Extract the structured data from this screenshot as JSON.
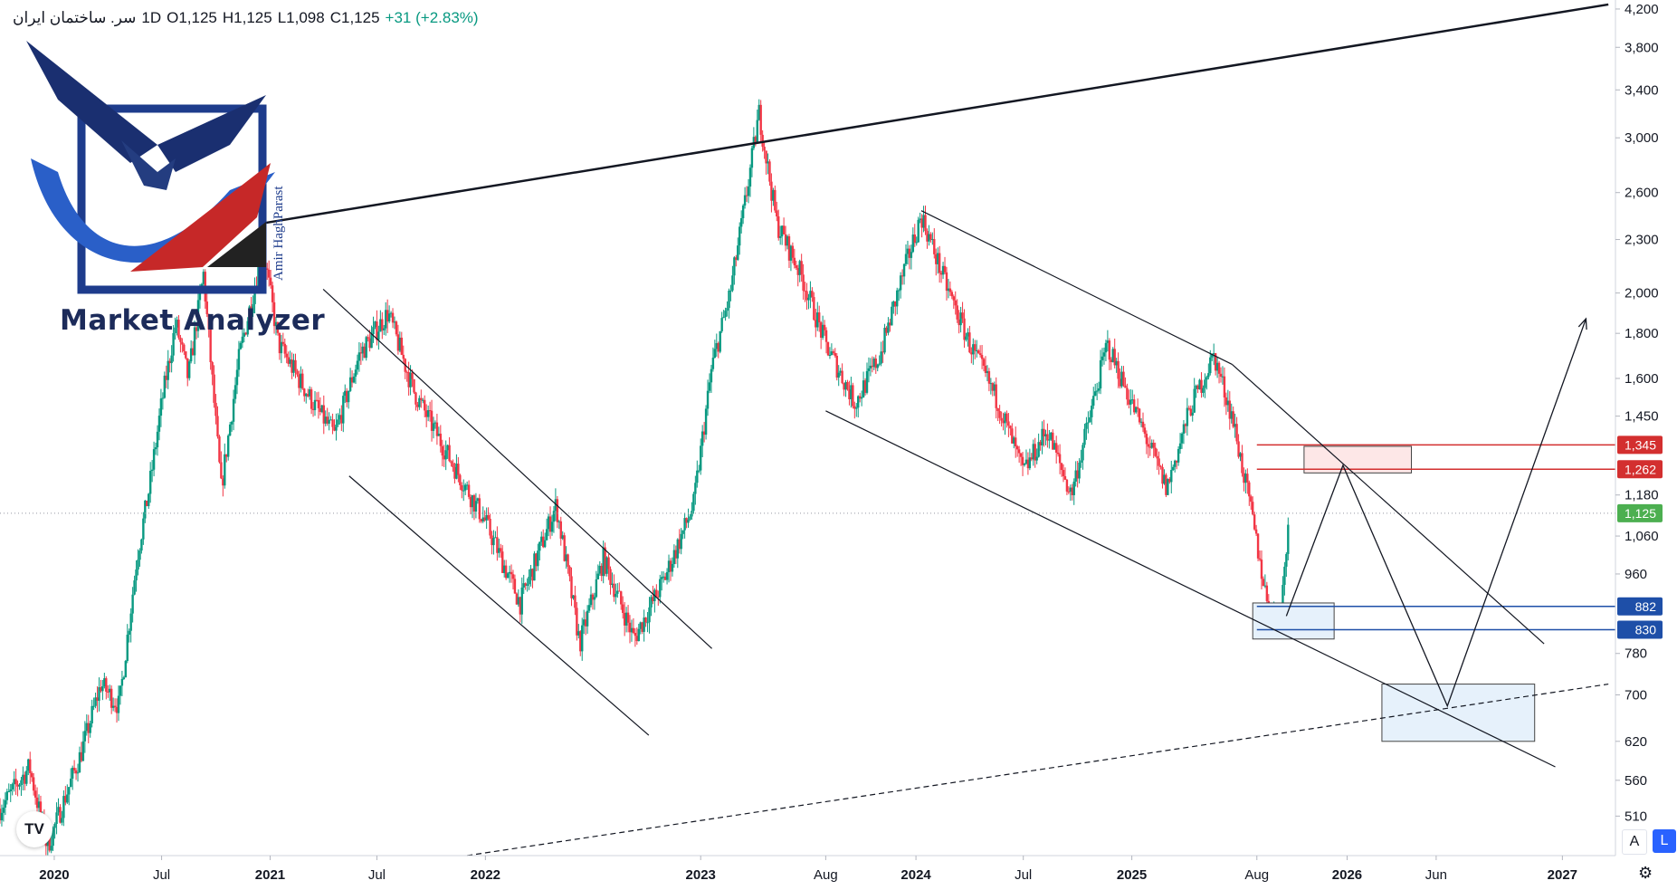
{
  "header": {
    "symbol": "سر. ساختمان ایران",
    "interval": "1D",
    "open": "O1,125",
    "high": "H1,125",
    "low": "L1,098",
    "close": "C1,125",
    "change": "+31 (+2.83%)"
  },
  "branding": {
    "title": "Market Analyzer",
    "author": "Amir HaghParast"
  },
  "toolbar": {
    "auto_label": "A",
    "log_label": "L",
    "tv_logo": "TV"
  },
  "icons": {
    "settings": "gear-icon"
  },
  "colors": {
    "up": "#089981",
    "down": "#f23645",
    "resistance": "#d32f2f",
    "support": "#1e4fa8",
    "last": "#4caf50"
  },
  "chart_data": {
    "type": "candlestick",
    "scale": "log",
    "ylim": [
      460,
      4300
    ],
    "y_ticks": [
      4200,
      3800,
      3400,
      3000,
      2600,
      2300,
      2000,
      1800,
      1600,
      1450,
      1180,
      1060,
      960,
      780,
      700,
      620,
      560,
      510
    ],
    "y_tick_labels": [
      "4,200",
      "3,800",
      "3,400",
      "3,000",
      "2,600",
      "2,300",
      "2,000",
      "1,800",
      "1,600",
      "1,450",
      "1,180",
      "1,060",
      "960",
      "780",
      "700",
      "620",
      "560",
      "510"
    ],
    "x_range": [
      "2019-10-01",
      "2027-04-01"
    ],
    "x_ticks": [
      {
        "date": "2020-01-01",
        "label": "2020",
        "bold": true
      },
      {
        "date": "2020-07-01",
        "label": "Jul",
        "bold": false
      },
      {
        "date": "2021-01-01",
        "label": "2021",
        "bold": true
      },
      {
        "date": "2021-07-01",
        "label": "Jul",
        "bold": false
      },
      {
        "date": "2022-01-01",
        "label": "2022",
        "bold": true
      },
      {
        "date": "2023-01-01",
        "label": "2023",
        "bold": true
      },
      {
        "date": "2023-08-01",
        "label": "Aug",
        "bold": false
      },
      {
        "date": "2024-01-01",
        "label": "2024",
        "bold": true
      },
      {
        "date": "2024-07-01",
        "label": "Jul",
        "bold": false
      },
      {
        "date": "2025-01-01",
        "label": "2025",
        "bold": true
      },
      {
        "date": "2025-08-01",
        "label": "Aug",
        "bold": false
      },
      {
        "date": "2026-01-01",
        "label": "2026",
        "bold": true
      },
      {
        "date": "2026-06-01",
        "label": "Jun",
        "bold": false
      },
      {
        "date": "2027-01-01",
        "label": "2027",
        "bold": true
      }
    ],
    "price_path": [
      {
        "t": "2019-10-01",
        "p": 520
      },
      {
        "t": "2019-11-20",
        "p": 580
      },
      {
        "t": "2019-12-20",
        "p": 470
      },
      {
        "t": "2020-02-15",
        "p": 600
      },
      {
        "t": "2020-03-20",
        "p": 720
      },
      {
        "t": "2020-04-20",
        "p": 680
      },
      {
        "t": "2020-05-20",
        "p": 1000
      },
      {
        "t": "2020-06-10",
        "p": 1200
      },
      {
        "t": "2020-07-01",
        "p": 1500
      },
      {
        "t": "2020-07-25",
        "p": 1850
      },
      {
        "t": "2020-08-15",
        "p": 1600
      },
      {
        "t": "2020-09-10",
        "p": 2100
      },
      {
        "t": "2020-10-10",
        "p": 1200
      },
      {
        "t": "2020-11-10",
        "p": 1700
      },
      {
        "t": "2020-12-20",
        "p": 2250
      },
      {
        "t": "2021-01-15",
        "p": 1750
      },
      {
        "t": "2021-03-15",
        "p": 1500
      },
      {
        "t": "2021-04-20",
        "p": 1380
      },
      {
        "t": "2021-06-01",
        "p": 1700
      },
      {
        "t": "2021-07-20",
        "p": 1900
      },
      {
        "t": "2021-09-01",
        "p": 1550
      },
      {
        "t": "2021-11-01",
        "p": 1300
      },
      {
        "t": "2022-01-01",
        "p": 1100
      },
      {
        "t": "2022-03-01",
        "p": 890
      },
      {
        "t": "2022-05-01",
        "p": 1150
      },
      {
        "t": "2022-06-10",
        "p": 800
      },
      {
        "t": "2022-07-20",
        "p": 1000
      },
      {
        "t": "2022-09-10",
        "p": 810
      },
      {
        "t": "2022-11-01",
        "p": 950
      },
      {
        "t": "2022-12-20",
        "p": 1150
      },
      {
        "t": "2023-01-20",
        "p": 1650
      },
      {
        "t": "2023-02-20",
        "p": 2000
      },
      {
        "t": "2023-03-20",
        "p": 2600
      },
      {
        "t": "2023-04-10",
        "p": 3200
      },
      {
        "t": "2023-05-10",
        "p": 2400
      },
      {
        "t": "2023-06-20",
        "p": 2100
      },
      {
        "t": "2023-08-01",
        "p": 1750
      },
      {
        "t": "2023-09-20",
        "p": 1500
      },
      {
        "t": "2023-11-01",
        "p": 1700
      },
      {
        "t": "2023-12-10",
        "p": 2100
      },
      {
        "t": "2024-01-10",
        "p": 2450
      },
      {
        "t": "2024-02-20",
        "p": 2050
      },
      {
        "t": "2024-04-01",
        "p": 1750
      },
      {
        "t": "2024-05-20",
        "p": 1500
      },
      {
        "t": "2024-07-01",
        "p": 1250
      },
      {
        "t": "2024-08-10",
        "p": 1400
      },
      {
        "t": "2024-09-20",
        "p": 1180
      },
      {
        "t": "2024-11-20",
        "p": 1750
      },
      {
        "t": "2025-01-10",
        "p": 1450
      },
      {
        "t": "2025-03-01",
        "p": 1200
      },
      {
        "t": "2025-04-10",
        "p": 1480
      },
      {
        "t": "2025-05-20",
        "p": 1700
      },
      {
        "t": "2025-06-20",
        "p": 1450
      },
      {
        "t": "2025-07-20",
        "p": 1150
      },
      {
        "t": "2025-08-20",
        "p": 880
      },
      {
        "t": "2025-09-10",
        "p": 860
      },
      {
        "t": "2025-09-25",
        "p": 1125
      }
    ],
    "last_price": {
      "value": 1125,
      "label": "1,125"
    },
    "levels": [
      {
        "name": "resistance-upper",
        "value": 1345,
        "label": "1,345",
        "color": "#d32f2f"
      },
      {
        "name": "resistance-lower",
        "value": 1262,
        "label": "1,262",
        "color": "#d32f2f"
      },
      {
        "name": "support-upper",
        "value": 882,
        "label": "882",
        "color": "#1e4fa8"
      },
      {
        "name": "support-lower",
        "value": 830,
        "label": "830",
        "color": "#1e4fa8"
      }
    ],
    "zones": [
      {
        "name": "sell-zone",
        "t1": "2025-10-20",
        "t2": "2026-04-20",
        "p1": 1340,
        "p2": 1250,
        "fill": "#fde7e7",
        "stroke": "#444"
      },
      {
        "name": "buy-zone-near",
        "t1": "2025-07-25",
        "t2": "2025-12-10",
        "p1": 890,
        "p2": 810,
        "fill": "#e6f1fb",
        "stroke": "#444"
      },
      {
        "name": "buy-zone-far",
        "t1": "2026-03-01",
        "t2": "2026-11-15",
        "p1": 720,
        "p2": 620,
        "fill": "#e6f1fb",
        "stroke": "#444"
      }
    ],
    "trendlines": [
      {
        "name": "long-term-resistance",
        "a": {
          "t": "2020-12-20",
          "p": 2400
        },
        "b": {
          "t": "2027-03-20",
          "p": 4250
        },
        "width": 2.5,
        "dash": false
      },
      {
        "name": "long-term-support",
        "a": {
          "t": "2021-12-01",
          "p": 460
        },
        "b": {
          "t": "2027-03-20",
          "p": 720
        },
        "width": 1.2,
        "dash": true
      },
      {
        "name": "channel-1-upper",
        "a": {
          "t": "2021-04-01",
          "p": 2020
        },
        "b": {
          "t": "2023-01-20",
          "p": 790
        },
        "width": 1.2,
        "dash": false
      },
      {
        "name": "channel-1-lower",
        "a": {
          "t": "2021-05-15",
          "p": 1240
        },
        "b": {
          "t": "2022-10-05",
          "p": 630
        },
        "width": 1.2,
        "dash": false
      },
      {
        "name": "channel-2-upper",
        "a": {
          "t": "2024-01-10",
          "p": 2480
        },
        "b": {
          "t": "2025-06-20",
          "p": 1660
        },
        "width": 1.2,
        "dash": false
      },
      {
        "name": "channel-2-upper-ext",
        "a": {
          "t": "2025-06-20",
          "p": 1660
        },
        "b": {
          "t": "2026-12-01",
          "p": 800
        },
        "width": 1.2,
        "dash": false
      },
      {
        "name": "channel-2-lower",
        "a": {
          "t": "2023-08-01",
          "p": 1470
        },
        "b": {
          "t": "2026-12-20",
          "p": 580
        },
        "width": 1.2,
        "dash": false
      }
    ],
    "projection": [
      {
        "t": "2025-09-20",
        "p": 860
      },
      {
        "t": "2025-12-25",
        "p": 1275
      },
      {
        "t": "2026-06-20",
        "p": 680
      },
      {
        "t": "2027-02-10",
        "p": 1870
      }
    ]
  }
}
